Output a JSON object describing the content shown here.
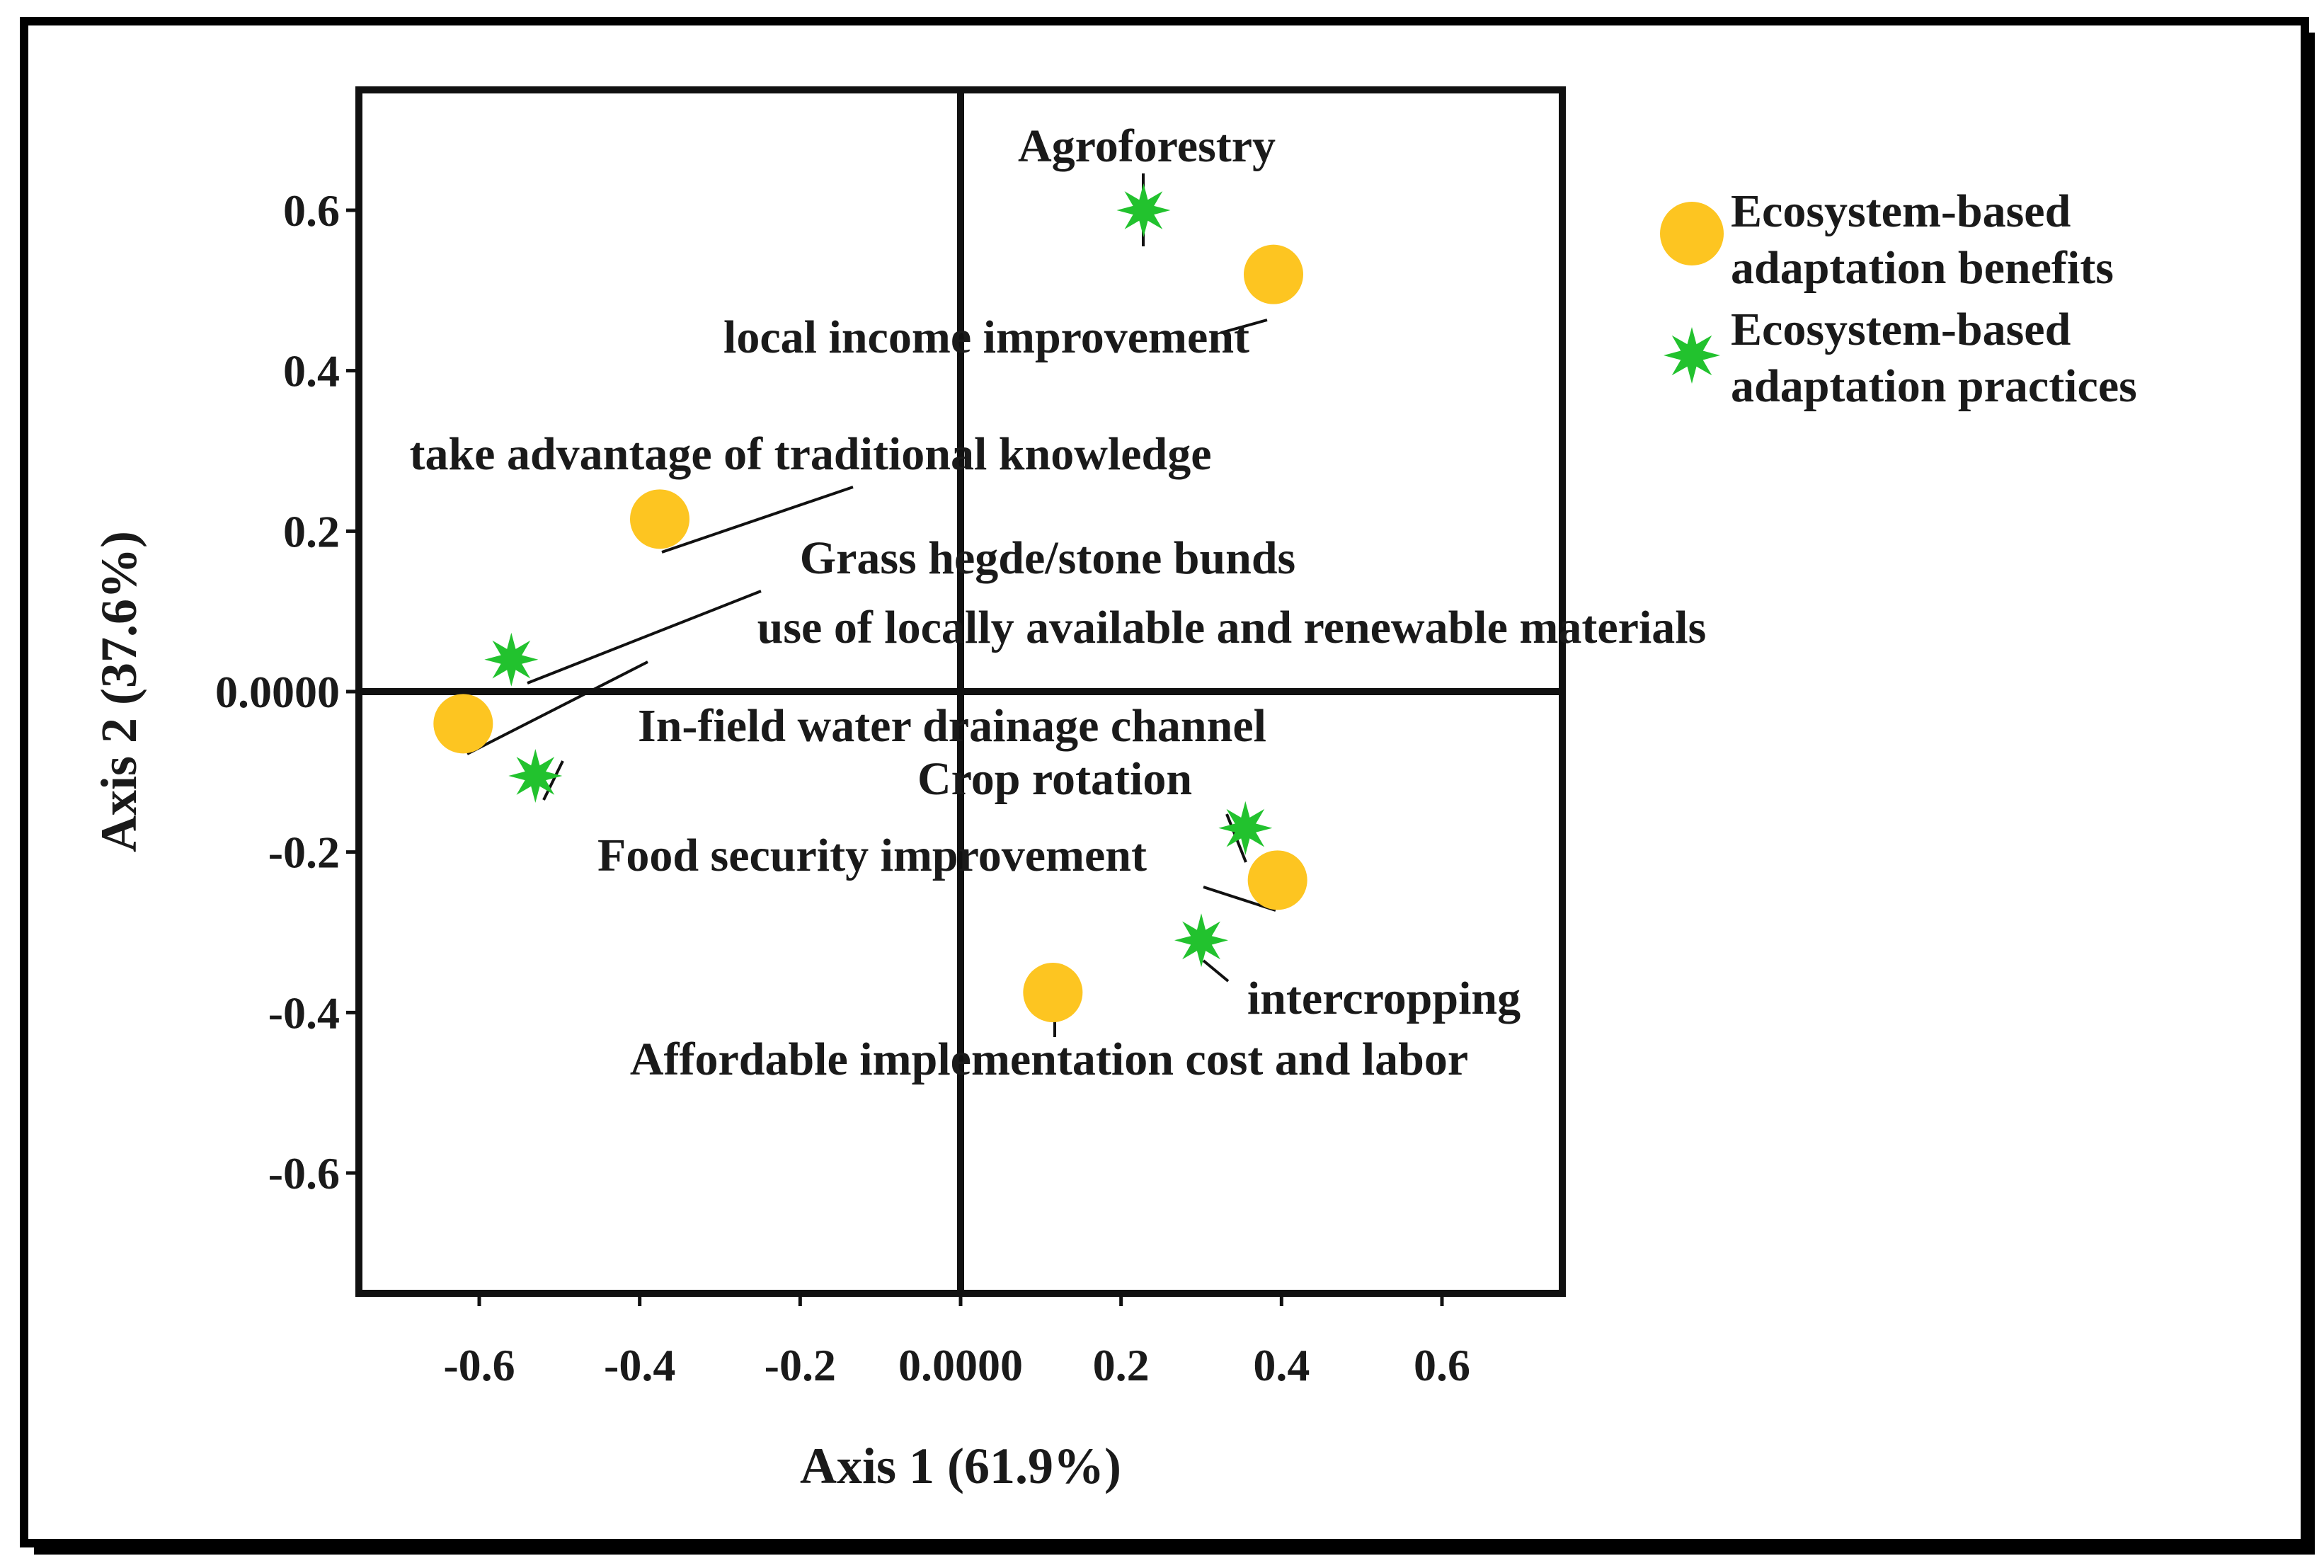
{
  "chart_data": {
    "type": "scatter",
    "title": "",
    "xlabel": "Axis 1 (61.9%)",
    "ylabel": "Axis 2 (37.6%)",
    "xlim": [
      -0.75,
      0.75
    ],
    "ylim": [
      -0.75,
      0.75
    ],
    "grid": false,
    "x_ticks": [
      -0.6,
      -0.4,
      -0.2,
      0.0,
      0.2,
      0.4,
      0.6
    ],
    "x_tick_labels": [
      "-0.6",
      "-0.4",
      "-0.2",
      "0.0000",
      "0.2",
      "0.4",
      "0.6"
    ],
    "y_ticks": [
      0.6,
      0.4,
      0.2,
      0.0,
      -0.2,
      -0.4,
      -0.6
    ],
    "y_tick_labels": [
      "0.6",
      "0.4",
      "0.2",
      "0.0000",
      "-0.2",
      "-0.4",
      "-0.6"
    ],
    "legend_position": "right",
    "series": [
      {
        "name": "Ecosystem-based adaptation benefits",
        "legend_lines": [
          "Ecosystem-based",
          "adaptation benefits"
        ],
        "marker": "circle",
        "color": "#FDC521",
        "points": [
          {
            "label": "local income improvement",
            "x": 0.39,
            "y": 0.52
          },
          {
            "label": "take advantage of traditional knowledge",
            "x": -0.375,
            "y": 0.215
          },
          {
            "label": "use of locally available and renewable materials",
            "x": -0.62,
            "y": -0.04
          },
          {
            "label": "Food security improvement",
            "x": 0.395,
            "y": -0.235
          },
          {
            "label": "Affordable implementation cost and labor",
            "x": 0.115,
            "y": -0.375
          }
        ]
      },
      {
        "name": "Ecosystem-based adaptation practices",
        "legend_lines": [
          "Ecosystem-based",
          "adaptation practices"
        ],
        "marker": "star",
        "color": "#22C22E",
        "points": [
          {
            "label": "Agroforestry",
            "x": 0.228,
            "y": 0.6
          },
          {
            "label": "Grass hegde/stone bunds",
            "x": -0.56,
            "y": 0.04
          },
          {
            "label": "In-field water drainage channel",
            "x": -0.53,
            "y": -0.105
          },
          {
            "label": "Crop rotation",
            "x": 0.355,
            "y": -0.17
          },
          {
            "label": "intercropping",
            "x": 0.3,
            "y": -0.31
          }
        ]
      }
    ]
  }
}
